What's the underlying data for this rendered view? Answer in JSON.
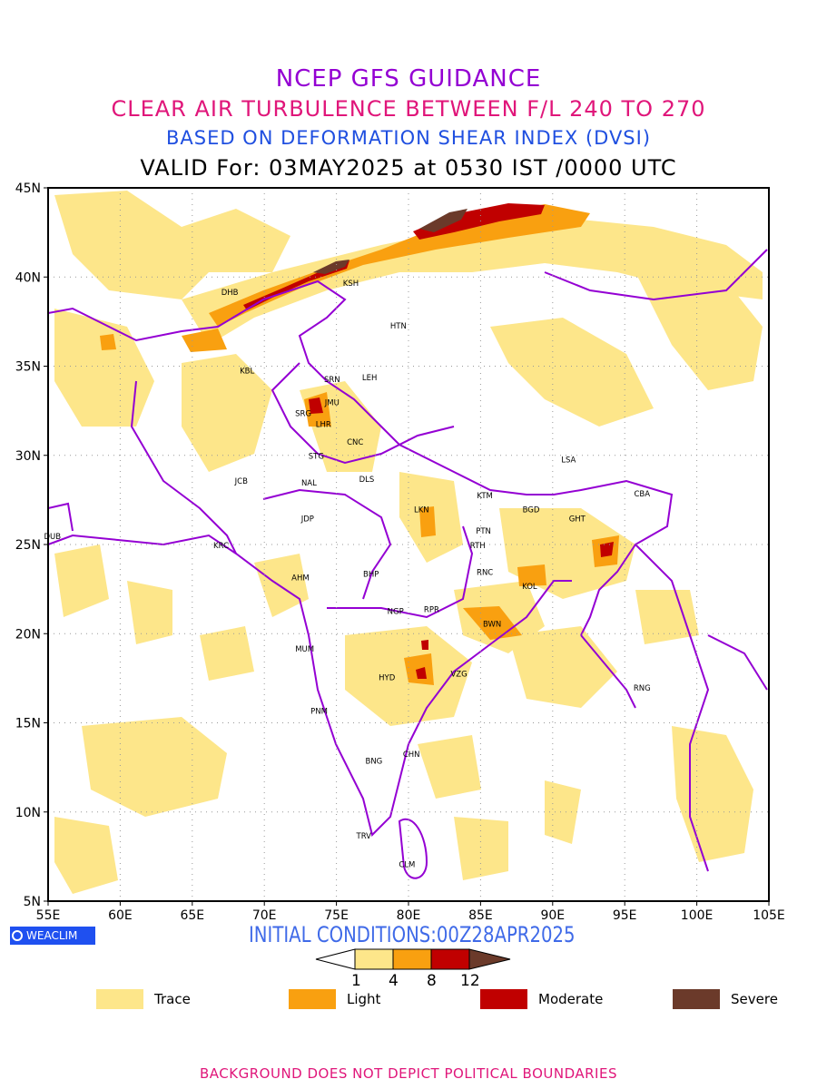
{
  "titles": {
    "line1": "NCEP GFS GUIDANCE",
    "line2": "CLEAR AIR TURBULENCE BETWEEN F/L 240 TO 270",
    "line3": "BASED ON DEFORMATION SHEAR INDEX (DVSI)",
    "line4": "VALID For: 03MAY2025 at 0530 IST /0000 UTC"
  },
  "map": {
    "lon_range": [
      55,
      105
    ],
    "lat_range": [
      5,
      45
    ],
    "lon_ticks": [
      "55E",
      "60E",
      "65E",
      "70E",
      "75E",
      "80E",
      "85E",
      "90E",
      "95E",
      "100E",
      "105E"
    ],
    "lat_ticks": [
      "5N",
      "10N",
      "15N",
      "20N",
      "25N",
      "30N",
      "35N",
      "40N",
      "45N"
    ],
    "grid": true,
    "cities": [
      {
        "code": "DHB",
        "lon": 67.6,
        "lat": 39.0
      },
      {
        "code": "KSH",
        "lon": 76.0,
        "lat": 39.5
      },
      {
        "code": "HTN",
        "lon": 79.3,
        "lat": 37.1
      },
      {
        "code": "KBL",
        "lon": 68.8,
        "lat": 34.6
      },
      {
        "code": "SRN",
        "lon": 74.7,
        "lat": 34.1
      },
      {
        "code": "LEH",
        "lon": 77.3,
        "lat": 34.2
      },
      {
        "code": "JMU",
        "lon": 74.7,
        "lat": 32.8
      },
      {
        "code": "SRG",
        "lon": 72.7,
        "lat": 32.2
      },
      {
        "code": "LHR",
        "lon": 74.1,
        "lat": 31.6
      },
      {
        "code": "CNC",
        "lon": 76.3,
        "lat": 30.6
      },
      {
        "code": "LSA",
        "lon": 91.1,
        "lat": 29.6
      },
      {
        "code": "STG",
        "lon": 73.6,
        "lat": 29.8
      },
      {
        "code": "JCB",
        "lon": 68.4,
        "lat": 28.4
      },
      {
        "code": "NAL",
        "lon": 73.1,
        "lat": 28.3
      },
      {
        "code": "DLS",
        "lon": 77.1,
        "lat": 28.5
      },
      {
        "code": "KTM",
        "lon": 85.3,
        "lat": 27.6
      },
      {
        "code": "CBA",
        "lon": 96.2,
        "lat": 27.7
      },
      {
        "code": "BGD",
        "lon": 88.5,
        "lat": 26.8
      },
      {
        "code": "GHT",
        "lon": 91.7,
        "lat": 26.3
      },
      {
        "code": "LKN",
        "lon": 80.9,
        "lat": 26.8
      },
      {
        "code": "JDP",
        "lon": 73.0,
        "lat": 26.3
      },
      {
        "code": "PTN",
        "lon": 85.2,
        "lat": 25.6
      },
      {
        "code": "DUB",
        "lon": 55.3,
        "lat": 25.3
      },
      {
        "code": "KRC",
        "lon": 67.0,
        "lat": 24.8
      },
      {
        "code": "RTH",
        "lon": 84.8,
        "lat": 24.8
      },
      {
        "code": "AHM",
        "lon": 72.5,
        "lat": 23.0
      },
      {
        "code": "BHP",
        "lon": 77.4,
        "lat": 23.2
      },
      {
        "code": "RNC",
        "lon": 85.3,
        "lat": 23.3
      },
      {
        "code": "KOL",
        "lon": 88.4,
        "lat": 22.5
      },
      {
        "code": "NGP",
        "lon": 79.1,
        "lat": 21.1
      },
      {
        "code": "RPR",
        "lon": 81.6,
        "lat": 21.2
      },
      {
        "code": "BWN",
        "lon": 85.8,
        "lat": 20.4
      },
      {
        "code": "MUM",
        "lon": 72.8,
        "lat": 19.0
      },
      {
        "code": "HYD",
        "lon": 78.5,
        "lat": 17.4
      },
      {
        "code": "VZG",
        "lon": 83.5,
        "lat": 17.6
      },
      {
        "code": "RNG",
        "lon": 96.2,
        "lat": 16.8
      },
      {
        "code": "PNM",
        "lon": 73.8,
        "lat": 15.5
      },
      {
        "code": "CHN",
        "lon": 80.2,
        "lat": 13.1
      },
      {
        "code": "BNG",
        "lon": 77.6,
        "lat": 12.7
      },
      {
        "code": "TRV",
        "lon": 76.9,
        "lat": 8.5
      },
      {
        "code": "CLM",
        "lon": 79.9,
        "lat": 6.9
      }
    ]
  },
  "logo_text": "WEACLIM",
  "initial_conditions": "INITIAL CONDITIONS:00Z28APR2025",
  "colorbar": {
    "levels": [
      "1",
      "4",
      "8",
      "12"
    ],
    "colors": [
      "#fde68a",
      "#f9a010",
      "#c00000",
      "#6b3a2a"
    ]
  },
  "legend": [
    {
      "label": "Trace",
      "color": "#fde68a"
    },
    {
      "label": "Light",
      "color": "#f9a010"
    },
    {
      "label": "Moderate",
      "color": "#c00000"
    },
    {
      "label": "Severe",
      "color": "#6b3a2a"
    }
  ],
  "footer": "BACKGROUND DOES NOT DEPICT POLITICAL BOUNDARIES"
}
